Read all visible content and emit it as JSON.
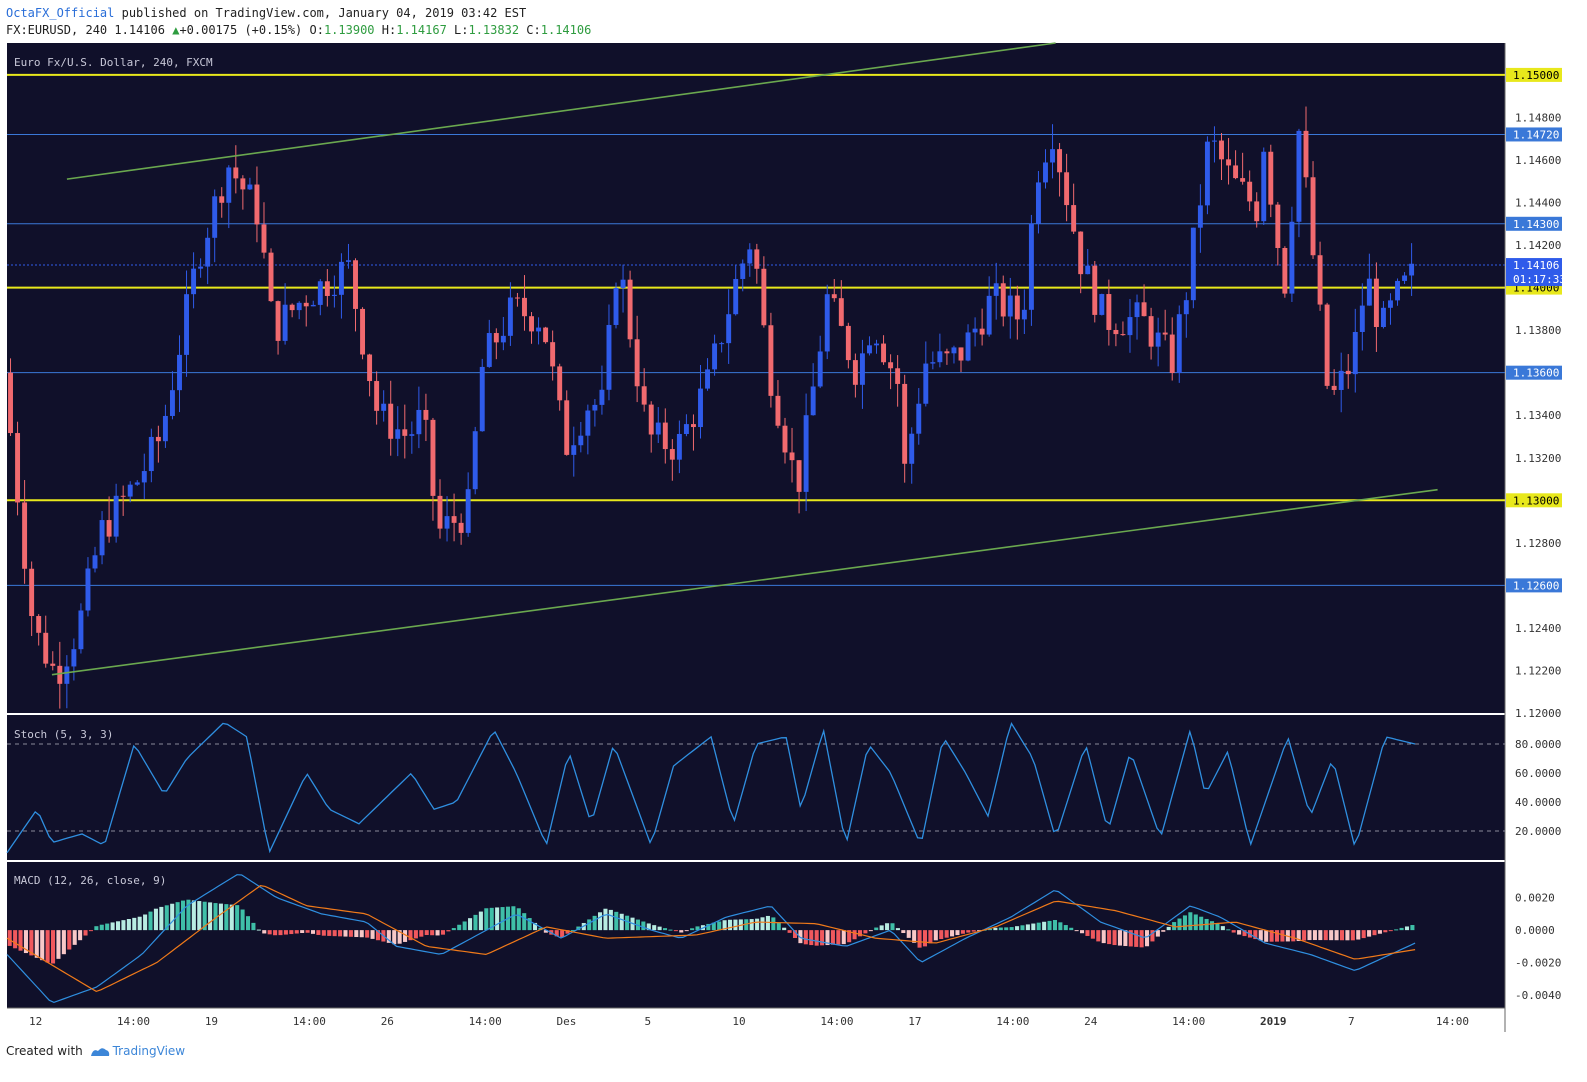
{
  "header": {
    "author": "OctaFX_Official",
    "published_text": "published on TradingView.com, January 04, 2019 03:42 EST",
    "symbol": "FX:EURUSD, 240",
    "last": "1.14106",
    "change": "+0.00175 (+0.15%)",
    "open_label": "O:",
    "open": "1.13900",
    "high_label": "H:",
    "high": "1.14167",
    "low_label": "L:",
    "low": "1.13832",
    "close_label": "C:",
    "close": "1.14106"
  },
  "footer": {
    "created_with": "Created with",
    "brand": "TradingView"
  },
  "colors": {
    "background": "#10102a",
    "up": "#2f5bea",
    "down": "#f16a6f",
    "level": "#e8e81c",
    "blue_line": "#3a78d8",
    "trend": "#6aa84f",
    "osc": "#2f8fe0",
    "signal": "#f07a1a"
  },
  "chart_data": [
    {
      "type": "candlestick",
      "title": "Euro Fx/U.S. Dollar, 240, FXCM",
      "ylim": [
        1.12,
        1.1515
      ],
      "y_ticks": [
        "1.12000",
        "1.12200",
        "1.12400",
        "1.12800",
        "1.13200",
        "1.13400",
        "1.13800",
        "1.14200",
        "1.14400",
        "1.14600",
        "1.14800"
      ],
      "x_ticks": [
        "12",
        "14:00",
        "19",
        "14:00",
        "26",
        "14:00",
        "Des",
        "5",
        "10",
        "14:00",
        "17",
        "14:00",
        "24",
        "14:00",
        "2019",
        "7",
        "14:00"
      ],
      "horizontal_levels": [
        {
          "value": 1.15,
          "label": "1.15000",
          "color": "yellow"
        },
        {
          "value": 1.1472,
          "label": "1.14720",
          "color": "blue"
        },
        {
          "value": 1.143,
          "label": "1.14300",
          "color": "blue"
        },
        {
          "value": 1.14,
          "label": "1.14000",
          "color": "yellow"
        },
        {
          "value": 1.136,
          "label": "1.13600",
          "color": "blue"
        },
        {
          "value": 1.13,
          "label": "1.13000",
          "color": "yellow"
        },
        {
          "value": 1.126,
          "label": "1.12600",
          "color": "blue"
        }
      ],
      "current_price": {
        "value": 1.14106,
        "label": "1.14106",
        "countdown": "01:17:33"
      },
      "trendlines": [
        {
          "from": [
            0.04,
            1.1451
          ],
          "to": [
            0.7,
            1.1515
          ]
        },
        {
          "from": [
            0.03,
            1.1218
          ],
          "to": [
            0.955,
            1.1305
          ]
        }
      ],
      "path_points": [
        [
          0,
          1.136
        ],
        [
          0.02,
          1.124
        ],
        [
          0.035,
          1.1218
        ],
        [
          0.05,
          1.124
        ],
        [
          0.065,
          1.1285
        ],
        [
          0.09,
          1.131
        ],
        [
          0.105,
          1.133
        ],
        [
          0.13,
          1.1415
        ],
        [
          0.15,
          1.1458
        ],
        [
          0.17,
          1.1435
        ],
        [
          0.18,
          1.138
        ],
        [
          0.2,
          1.1395
        ],
        [
          0.23,
          1.141
        ],
        [
          0.25,
          1.134
        ],
        [
          0.27,
          1.133
        ],
        [
          0.28,
          1.134
        ],
        [
          0.29,
          1.1285
        ],
        [
          0.31,
          1.1295
        ],
        [
          0.32,
          1.1365
        ],
        [
          0.34,
          1.139
        ],
        [
          0.36,
          1.1385
        ],
        [
          0.375,
          1.1325
        ],
        [
          0.39,
          1.1345
        ],
        [
          0.4,
          1.1345
        ],
        [
          0.41,
          1.1415
        ],
        [
          0.43,
          1.133
        ],
        [
          0.45,
          1.1325
        ],
        [
          0.47,
          1.1355
        ],
        [
          0.49,
          1.1405
        ],
        [
          0.5,
          1.1425
        ],
        [
          0.51,
          1.1365
        ],
        [
          0.53,
          1.1305
        ],
        [
          0.55,
          1.1395
        ],
        [
          0.57,
          1.136
        ],
        [
          0.58,
          1.1385
        ],
        [
          0.6,
          1.135
        ],
        [
          0.59,
          1.127
        ],
        [
          0.615,
          1.1365
        ],
        [
          0.63,
          1.1365
        ],
        [
          0.64,
          1.137
        ],
        [
          0.66,
          1.1395
        ],
        [
          0.68,
          1.1385
        ],
        [
          0.69,
          1.1455
        ],
        [
          0.7,
          1.1475
        ],
        [
          0.72,
          1.141
        ],
        [
          0.735,
          1.1385
        ],
        [
          0.76,
          1.1385
        ],
        [
          0.78,
          1.1365
        ],
        [
          0.79,
          1.14
        ],
        [
          0.805,
          1.147
        ],
        [
          0.82,
          1.145
        ],
        [
          0.84,
          1.1435
        ],
        [
          0.84,
          1.1475
        ],
        [
          0.855,
          1.14
        ],
        [
          0.865,
          1.1475
        ],
        [
          0.875,
          1.141
        ],
        [
          0.885,
          1.1345
        ],
        [
          0.9,
          1.1365
        ],
        [
          0.91,
          1.1405
        ],
        [
          0.92,
          1.138
        ],
        [
          0.93,
          1.1395
        ],
        [
          0.94,
          1.1405
        ]
      ],
      "x_end": 0.94
    },
    {
      "type": "line",
      "title": "Stoch (5, 3, 3)",
      "ylim": [
        0,
        100
      ],
      "y_ticks": [
        "80.0000",
        "60.0000",
        "40.0000",
        "20.0000"
      ],
      "levels": [
        80,
        20
      ],
      "path_points": [
        [
          0,
          5
        ],
        [
          0.02,
          35
        ],
        [
          0.03,
          12
        ],
        [
          0.05,
          18
        ],
        [
          0.065,
          10
        ],
        [
          0.085,
          80
        ],
        [
          0.105,
          45
        ],
        [
          0.12,
          70
        ],
        [
          0.145,
          95
        ],
        [
          0.16,
          85
        ],
        [
          0.175,
          5
        ],
        [
          0.2,
          60
        ],
        [
          0.215,
          35
        ],
        [
          0.235,
          25
        ],
        [
          0.27,
          60
        ],
        [
          0.285,
          35
        ],
        [
          0.3,
          40
        ],
        [
          0.325,
          90
        ],
        [
          0.34,
          60
        ],
        [
          0.36,
          10
        ],
        [
          0.375,
          75
        ],
        [
          0.39,
          25
        ],
        [
          0.405,
          80
        ],
        [
          0.43,
          10
        ],
        [
          0.445,
          65
        ],
        [
          0.47,
          85
        ],
        [
          0.485,
          25
        ],
        [
          0.5,
          80
        ],
        [
          0.52,
          85
        ],
        [
          0.53,
          35
        ],
        [
          0.545,
          90
        ],
        [
          0.56,
          10
        ],
        [
          0.575,
          80
        ],
        [
          0.59,
          60
        ],
        [
          0.61,
          10
        ],
        [
          0.625,
          85
        ],
        [
          0.64,
          60
        ],
        [
          0.655,
          30
        ],
        [
          0.67,
          95
        ],
        [
          0.685,
          70
        ],
        [
          0.7,
          15
        ],
        [
          0.72,
          80
        ],
        [
          0.735,
          20
        ],
        [
          0.75,
          75
        ],
        [
          0.77,
          15
        ],
        [
          0.79,
          90
        ],
        [
          0.8,
          45
        ],
        [
          0.815,
          75
        ],
        [
          0.83,
          10
        ],
        [
          0.855,
          85
        ],
        [
          0.87,
          30
        ],
        [
          0.885,
          70
        ],
        [
          0.9,
          8
        ],
        [
          0.92,
          85
        ],
        [
          0.94,
          80
        ]
      ],
      "x_end": 0.94
    },
    {
      "type": "histogram",
      "title": "MACD (12, 26, close, 9)",
      "ylim": [
        -0.0048,
        0.0042
      ],
      "y_ticks": [
        "0.0020",
        "0.0000",
        "-0.0020",
        "-0.0040"
      ],
      "macd_points": [
        [
          0,
          -0.0015
        ],
        [
          0.03,
          -0.0045
        ],
        [
          0.06,
          -0.0035
        ],
        [
          0.09,
          -0.0015
        ],
        [
          0.12,
          0.0015
        ],
        [
          0.155,
          0.0035
        ],
        [
          0.18,
          0.002
        ],
        [
          0.21,
          0.001
        ],
        [
          0.24,
          0.0005
        ],
        [
          0.26,
          -0.001
        ],
        [
          0.29,
          -0.0015
        ],
        [
          0.31,
          -0.0005
        ],
        [
          0.34,
          0.001
        ],
        [
          0.37,
          -0.0005
        ],
        [
          0.4,
          0.001
        ],
        [
          0.43,
          0.0
        ],
        [
          0.45,
          -0.0005
        ],
        [
          0.48,
          0.0008
        ],
        [
          0.51,
          0.0015
        ],
        [
          0.53,
          -0.0005
        ],
        [
          0.56,
          -0.001
        ],
        [
          0.59,
          0.0
        ],
        [
          0.61,
          -0.002
        ],
        [
          0.64,
          -0.0005
        ],
        [
          0.67,
          0.0008
        ],
        [
          0.7,
          0.0025
        ],
        [
          0.73,
          0.0005
        ],
        [
          0.76,
          -0.0005
        ],
        [
          0.79,
          0.0015
        ],
        [
          0.81,
          0.0008
        ],
        [
          0.84,
          -0.0008
        ],
        [
          0.87,
          -0.0015
        ],
        [
          0.9,
          -0.0025
        ],
        [
          0.94,
          -0.0008
        ]
      ],
      "signal_points": [
        [
          0,
          -0.0005
        ],
        [
          0.06,
          -0.0038
        ],
        [
          0.1,
          -0.002
        ],
        [
          0.14,
          0.0008
        ],
        [
          0.17,
          0.0028
        ],
        [
          0.2,
          0.0015
        ],
        [
          0.24,
          0.001
        ],
        [
          0.28,
          -0.001
        ],
        [
          0.32,
          -0.0015
        ],
        [
          0.36,
          0.0002
        ],
        [
          0.4,
          -0.0005
        ],
        [
          0.46,
          -0.0003
        ],
        [
          0.5,
          0.0005
        ],
        [
          0.54,
          0.0004
        ],
        [
          0.58,
          -0.0005
        ],
        [
          0.62,
          -0.0008
        ],
        [
          0.66,
          0.0002
        ],
        [
          0.7,
          0.0018
        ],
        [
          0.74,
          0.0012
        ],
        [
          0.78,
          0.0002
        ],
        [
          0.82,
          0.0005
        ],
        [
          0.86,
          -0.0005
        ],
        [
          0.9,
          -0.0018
        ],
        [
          0.94,
          -0.0012
        ]
      ],
      "x_end": 0.94
    }
  ]
}
